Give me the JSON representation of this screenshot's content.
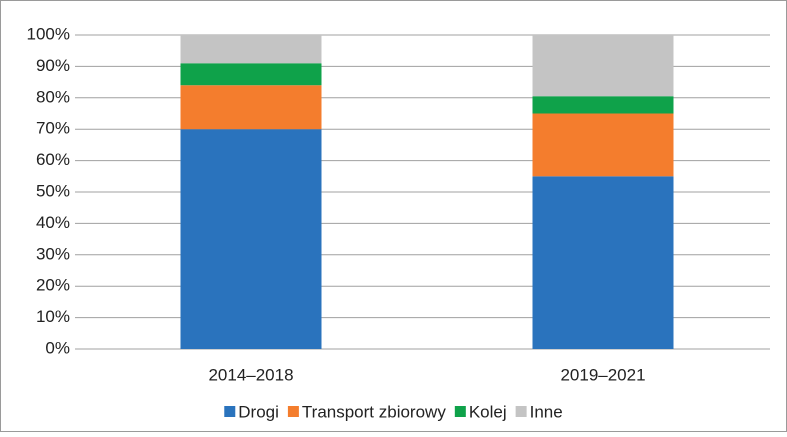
{
  "chart_data": {
    "type": "stacked-bar",
    "categories": [
      "2014–2018",
      "2019–2021"
    ],
    "series": [
      {
        "name": "Drogi",
        "color": "#2a73bd",
        "values": [
          70,
          55
        ]
      },
      {
        "name": "Transport zbiorowy",
        "color": "#f47d2d",
        "values": [
          14,
          20
        ]
      },
      {
        "name": "Kolej",
        "color": "#0fa24a",
        "values": [
          7,
          5.5
        ]
      },
      {
        "name": "Inne",
        "color": "#c4c4c4",
        "values": [
          9,
          19.5
        ]
      }
    ],
    "ylim": [
      0,
      100
    ],
    "yticks": [
      {
        "value": 0,
        "label": "0%"
      },
      {
        "value": 10,
        "label": "10%"
      },
      {
        "value": 20,
        "label": "20%"
      },
      {
        "value": 30,
        "label": "30%"
      },
      {
        "value": 40,
        "label": "40%"
      },
      {
        "value": 50,
        "label": "50%"
      },
      {
        "value": 60,
        "label": "60%"
      },
      {
        "value": 70,
        "label": "70%"
      },
      {
        "value": 80,
        "label": "80%"
      },
      {
        "value": 90,
        "label": "90%"
      },
      {
        "value": 100,
        "label": "100%"
      }
    ],
    "grid": true,
    "legend": "bottom"
  }
}
